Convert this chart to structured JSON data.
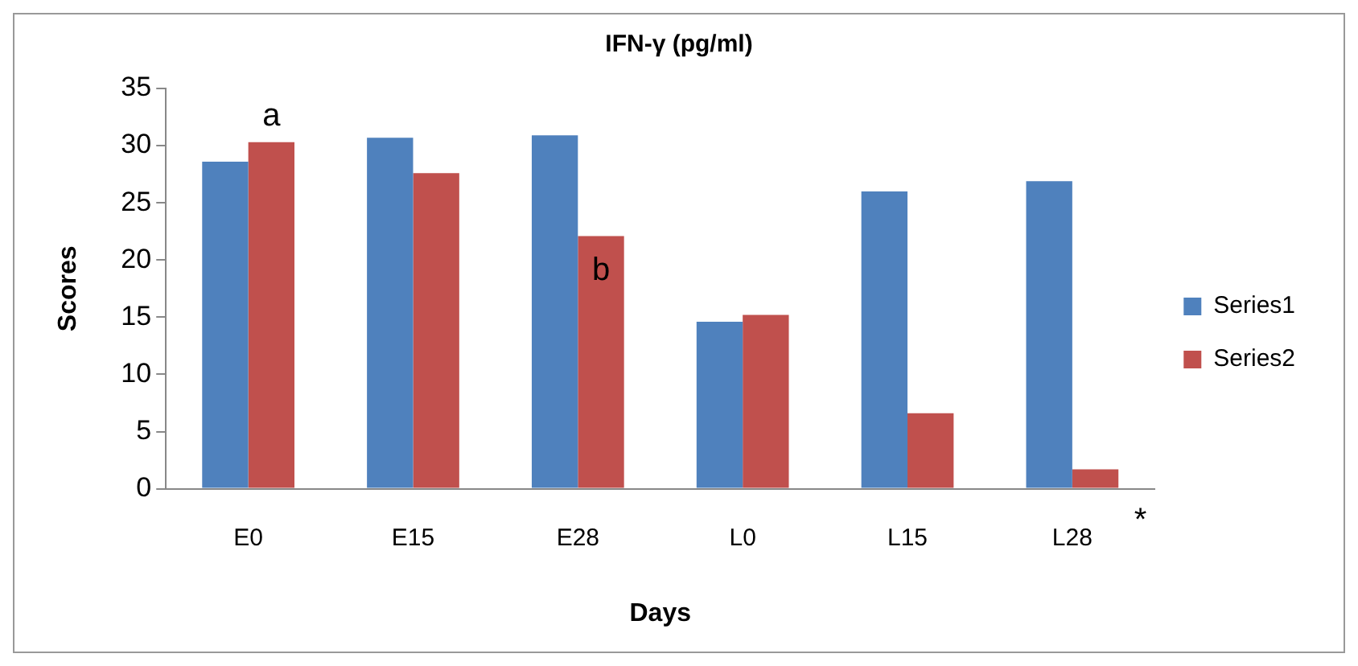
{
  "chart_data": {
    "type": "bar",
    "title": "IFN-γ (pg/ml)",
    "xlabel": "Days",
    "ylabel": "Scores",
    "categories": [
      "E0",
      "E15",
      "E28",
      "L0",
      "L15",
      "L28"
    ],
    "series": [
      {
        "name": "Series1",
        "color": "#4f81bd",
        "values": [
          28.6,
          30.7,
          30.9,
          14.6,
          26.0,
          26.9
        ]
      },
      {
        "name": "Series2",
        "color": "#c0504d",
        "values": [
          30.3,
          27.6,
          22.1,
          15.2,
          6.6,
          1.7
        ]
      }
    ],
    "ylim": [
      0,
      35
    ],
    "yticks": [
      0,
      5,
      10,
      15,
      20,
      25,
      30,
      35
    ],
    "grid": false,
    "legend": "right",
    "annotations": [
      "a",
      "b",
      "*"
    ]
  }
}
